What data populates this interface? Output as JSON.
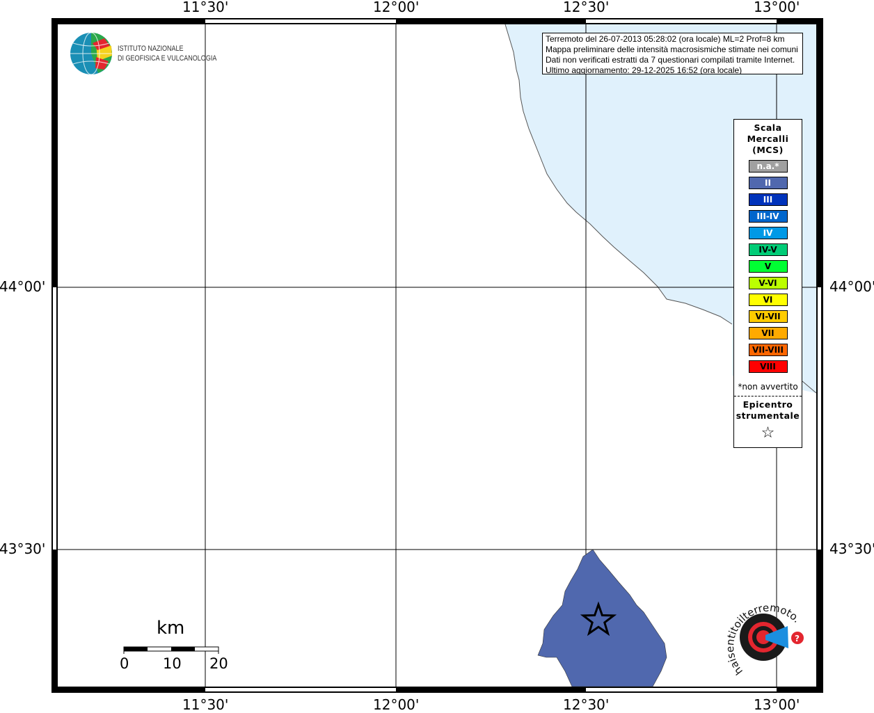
{
  "map": {
    "lon_ticks": [
      "11°30'",
      "12°00'",
      "12°30'",
      "13°00'"
    ],
    "lat_ticks": [
      "44°00'",
      "43°30'"
    ],
    "sea_color": "#e0f1fc",
    "region_color": "#5068ae",
    "epicenter_icon": "star-icon"
  },
  "info_box": {
    "lines": [
      "Terremoto del 26-07-2013 05:28:02 (ora locale) ML=2 Prof=8 km",
      "Mappa preliminare delle intensità macrosismiche stimate nei comuni",
      "Dati non verificati estratti da 7 questionari compilati tramite Internet.",
      "Ultimo aggiornamento: 29-12-2025 16:52 (ora locale)"
    ]
  },
  "legend": {
    "title": [
      "Scala",
      "Mercalli",
      "(MCS)"
    ],
    "items": [
      {
        "label": "n.a.*",
        "color": "#a0a0a0",
        "text_color": "#ffffff"
      },
      {
        "label": "II",
        "color": "#5068ae",
        "text_color": "#ffffff"
      },
      {
        "label": "III",
        "color": "#0033bb",
        "text_color": "#ffffff"
      },
      {
        "label": "III-IV",
        "color": "#0066cc",
        "text_color": "#ffffff"
      },
      {
        "label": "IV",
        "color": "#0099e6",
        "text_color": "#ffffff"
      },
      {
        "label": "IV-V",
        "color": "#00cc77",
        "text_color": "#000000"
      },
      {
        "label": "V",
        "color": "#00ff33",
        "text_color": "#000000"
      },
      {
        "label": "V-VI",
        "color": "#bbff00",
        "text_color": "#000000"
      },
      {
        "label": "VI",
        "color": "#ffff00",
        "text_color": "#000000"
      },
      {
        "label": "VI-VII",
        "color": "#ffcc00",
        "text_color": "#000000"
      },
      {
        "label": "VII",
        "color": "#ffaa00",
        "text_color": "#000000"
      },
      {
        "label": "VII-VIII",
        "color": "#ff6600",
        "text_color": "#000000"
      },
      {
        "label": "VIII",
        "color": "#ff0000",
        "text_color": "#000000"
      }
    ],
    "note": "*non avvertito",
    "epicenter_label": [
      "Epicentro",
      "strumentale"
    ]
  },
  "scale_bar": {
    "unit": "km",
    "labels": [
      "0",
      "10",
      "20"
    ]
  },
  "logos": {
    "ingv": [
      "ISTITUTO NAZIONALE",
      "DI GEOFISICA E VULCANOLOGIA"
    ],
    "hsit": "www.haisentitoilterremoto.it"
  }
}
